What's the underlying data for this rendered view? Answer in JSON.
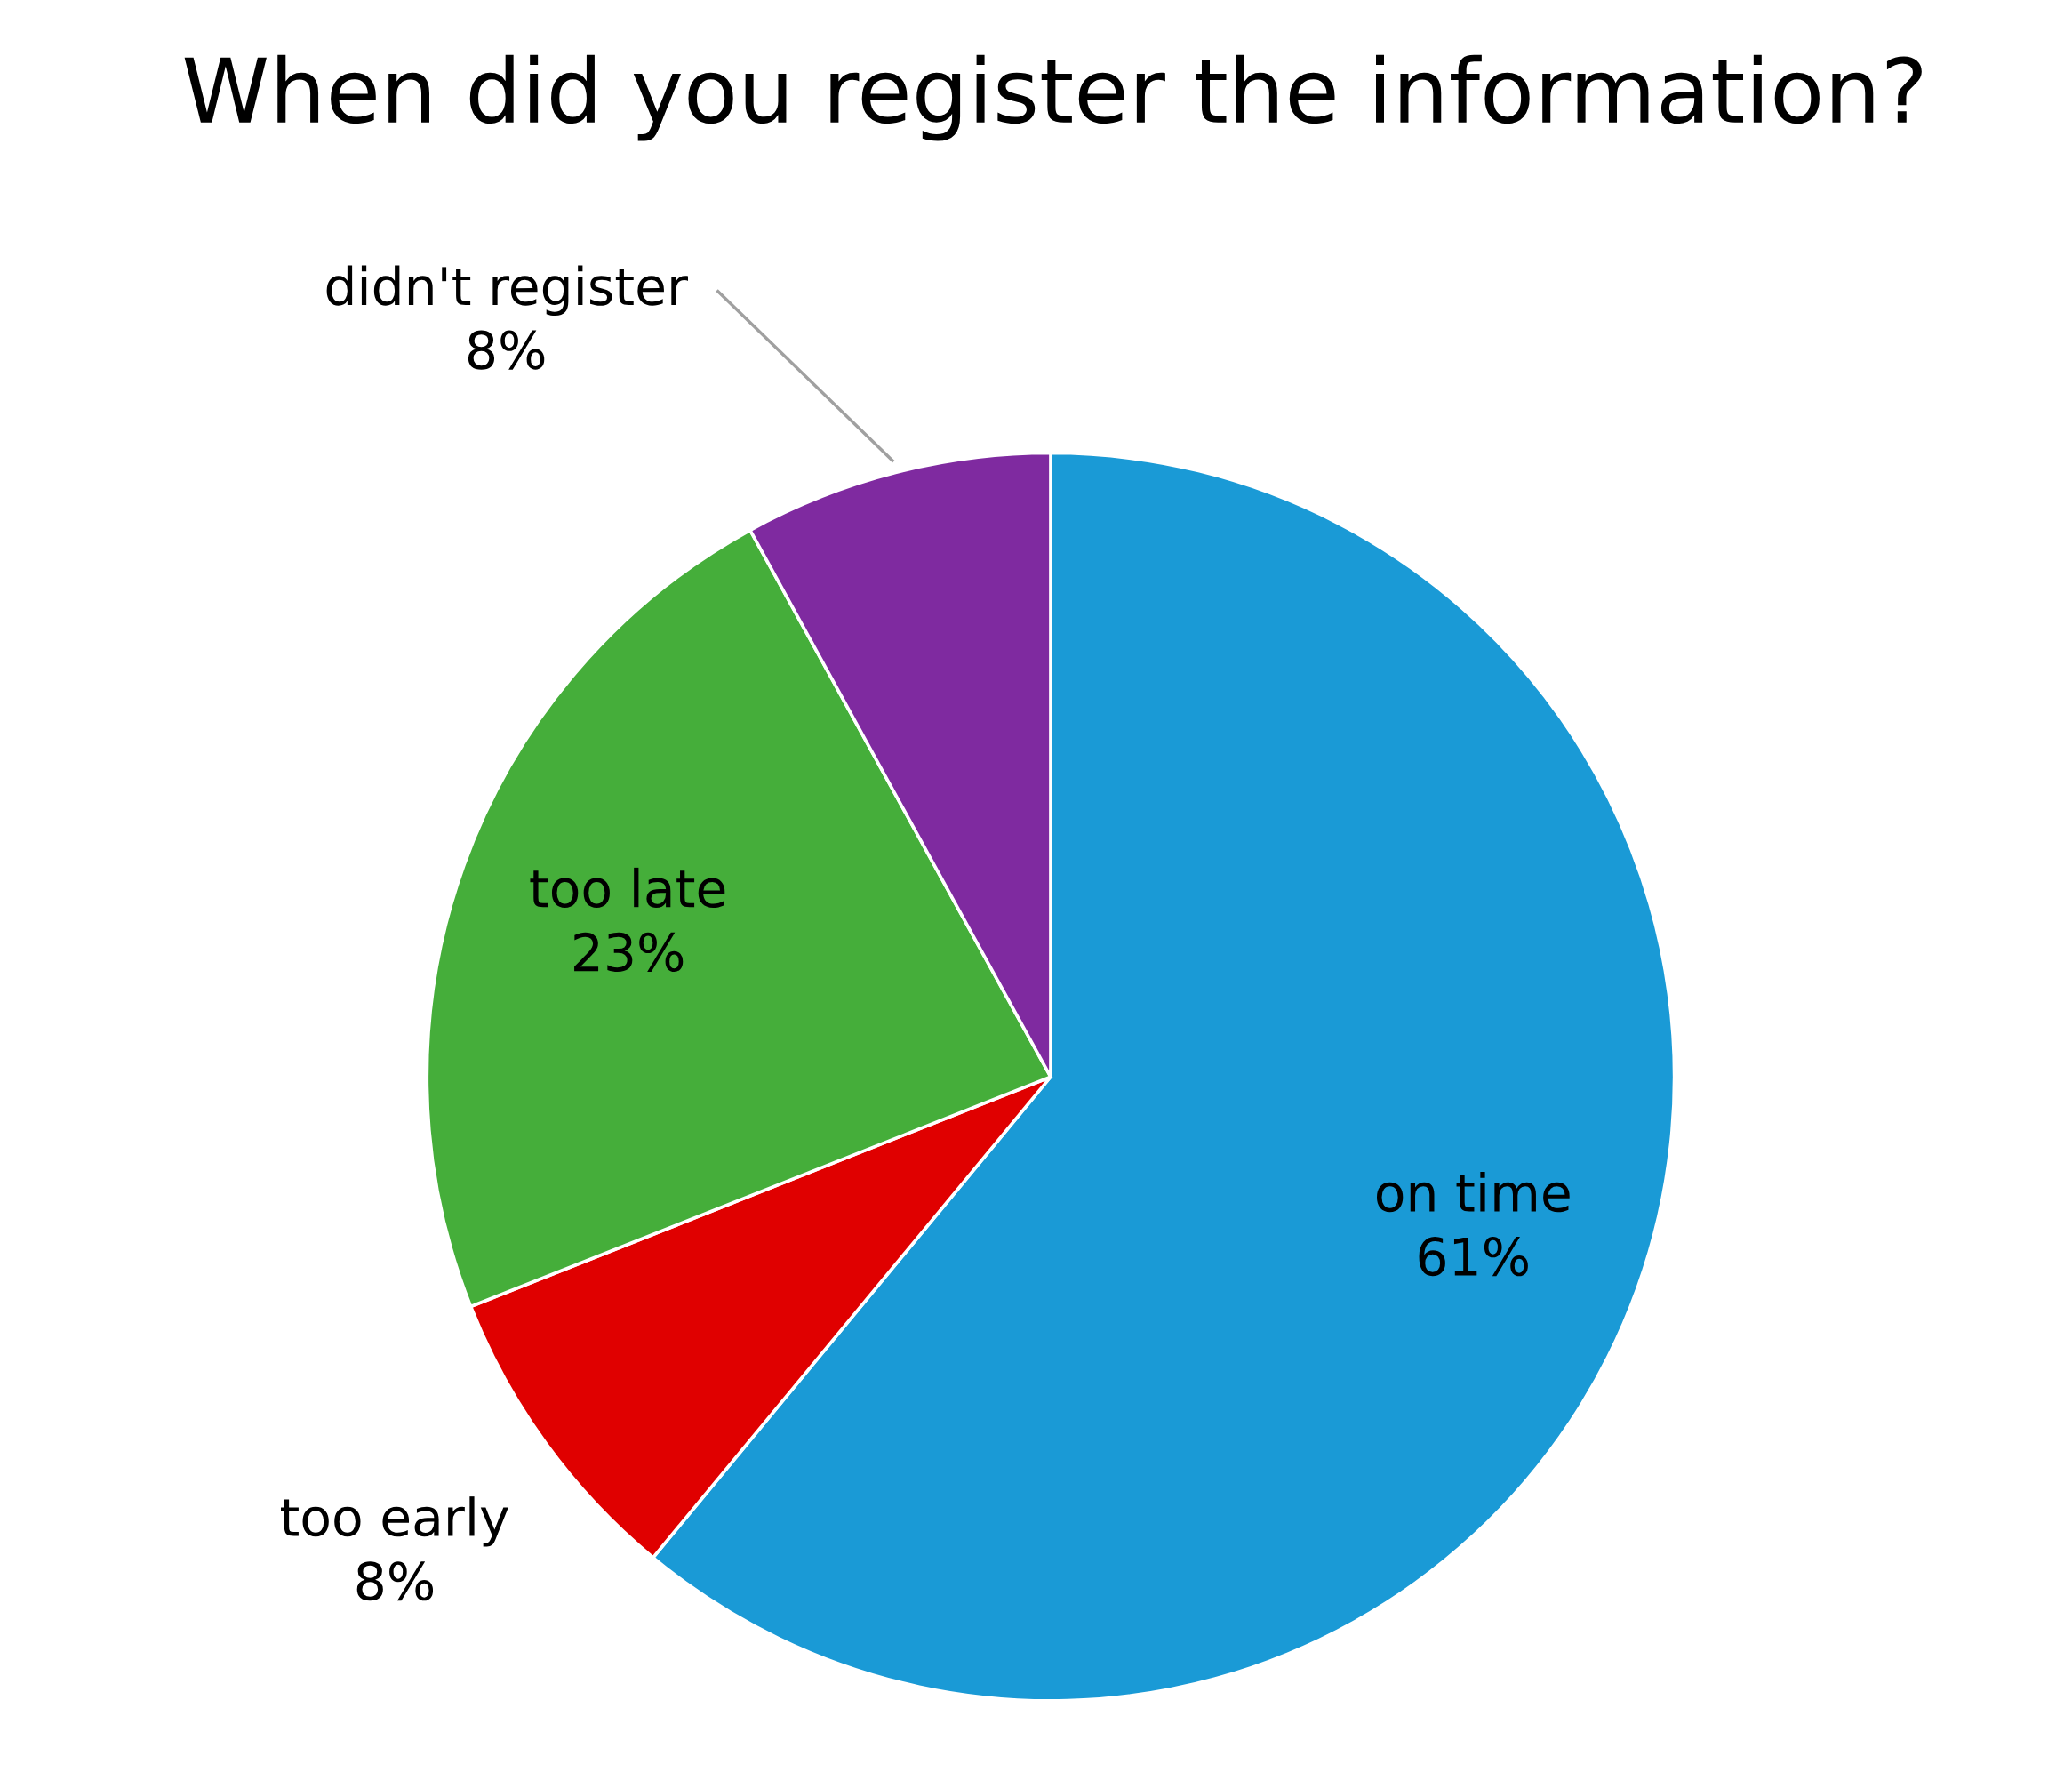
{
  "chart_data": {
    "type": "pie",
    "title": "When did you register the information?",
    "categories": [
      "on time",
      "too early",
      "too late",
      "didn't register"
    ],
    "values": [
      61,
      8,
      23,
      8
    ],
    "value_labels": [
      "61%",
      "8%",
      "23%",
      "8%"
    ],
    "colors": [
      "#1a9ad6",
      "#e00000",
      "#45ae3a",
      "#7f2aa0"
    ],
    "legend": false
  }
}
